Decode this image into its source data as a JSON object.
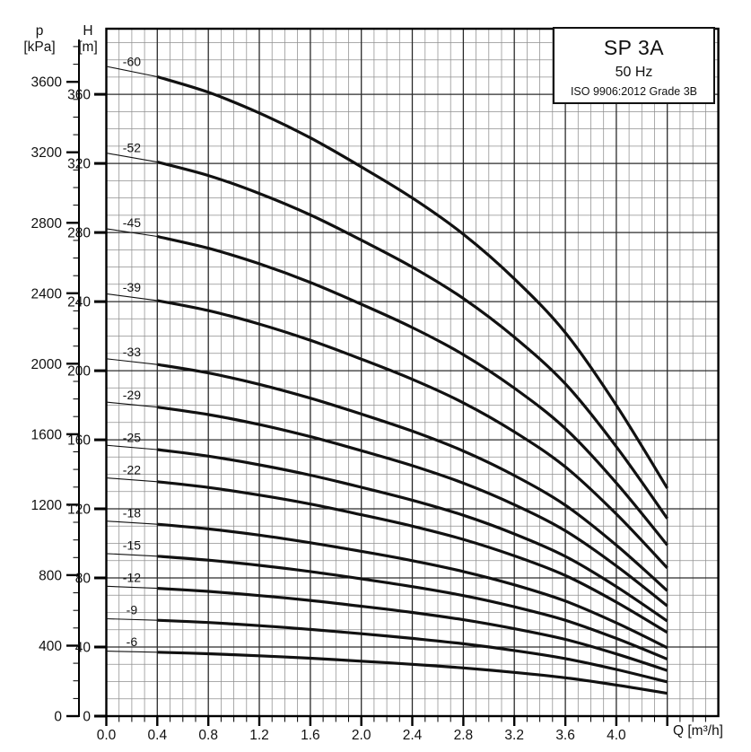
{
  "title_box": {
    "model": "SP 3A",
    "frequency": "50 Hz",
    "standard": "ISO 9906:2012 Grade 3B"
  },
  "axes": {
    "pressure": {
      "symbol": "p",
      "unit": "[kPa]",
      "tick_labels": [
        "0",
        "400",
        "800",
        "1200",
        "1600",
        "2000",
        "2400",
        "2800",
        "3200",
        "3600"
      ],
      "tick_values": [
        0,
        400,
        800,
        1200,
        1600,
        2000,
        2400,
        2800,
        3200,
        3600
      ],
      "minor_step": 100,
      "minor_max": 3800
    },
    "head": {
      "symbol": "H",
      "unit": "[m]",
      "tick_labels": [
        "0",
        "40",
        "80",
        "120",
        "160",
        "200",
        "240",
        "280",
        "320",
        "360"
      ],
      "tick_values": [
        0,
        40,
        80,
        120,
        160,
        200,
        240,
        280,
        320,
        360
      ]
    },
    "flow": {
      "label": "Q [m³/h]",
      "tick_labels": [
        "0.0",
        "0.4",
        "0.8",
        "1.2",
        "1.6",
        "2.0",
        "2.4",
        "2.8",
        "3.2",
        "3.6",
        "4.0"
      ],
      "tick_values": [
        0,
        0.4,
        0.8,
        1.2,
        1.6,
        2.0,
        2.4,
        2.8,
        3.2,
        3.6,
        4.0
      ]
    }
  },
  "chart_data": {
    "type": "line",
    "title": "SP 3A 50 Hz pump performance curves (head vs flow per stage count)",
    "xlabel": "Q [m³/h]",
    "ylabel": "H [m]",
    "y2label": "p [kPa]",
    "xlim": [
      0,
      4.8
    ],
    "ylim": [
      0,
      398
    ],
    "y2lim": [
      0,
      3890
    ],
    "grid": "minor 0.1 m3/h x 10 m, major 0.4 m3/h x 40 m",
    "legend_position": "labels above each curve at Q=0.2",
    "x": [
      0,
      0.4,
      0.8,
      1.2,
      1.6,
      2.0,
      2.4,
      2.8,
      3.2,
      3.6,
      4.0,
      4.4
    ],
    "thick_range_q": [
      0.4,
      4.4
    ],
    "series": [
      {
        "name": "-60",
        "values": [
          376.2,
          370.2,
          361.2,
          349.2,
          334.8,
          318.0,
          300.0,
          279.0,
          253.2,
          222.0,
          180.0,
          132.0
        ]
      },
      {
        "name": "-52",
        "values": [
          326.0,
          320.8,
          313.0,
          302.6,
          290.2,
          275.6,
          260.0,
          241.8,
          219.4,
          192.4,
          156.0,
          114.4
        ]
      },
      {
        "name": "-45",
        "values": [
          282.2,
          277.7,
          270.9,
          261.9,
          251.1,
          238.5,
          225.0,
          209.3,
          189.9,
          166.5,
          135.0,
          99.0
        ]
      },
      {
        "name": "-39",
        "values": [
          244.5,
          240.6,
          234.8,
          227.0,
          217.6,
          206.7,
          195.0,
          181.4,
          164.6,
          144.3,
          117.0,
          85.8
        ]
      },
      {
        "name": "-33",
        "values": [
          206.9,
          203.6,
          198.7,
          192.1,
          184.1,
          174.9,
          165.0,
          153.5,
          139.3,
          122.1,
          99.0,
          72.6
        ]
      },
      {
        "name": "-29",
        "values": [
          181.8,
          178.9,
          174.6,
          168.8,
          161.8,
          153.7,
          145.0,
          134.9,
          122.4,
          107.3,
          87.0,
          63.8
        ]
      },
      {
        "name": "-25",
        "values": [
          156.8,
          154.3,
          150.5,
          145.5,
          139.5,
          132.5,
          125.0,
          116.3,
          105.5,
          92.5,
          75.0,
          55.0
        ]
      },
      {
        "name": "-22",
        "values": [
          137.9,
          135.7,
          132.4,
          128.0,
          122.8,
          116.6,
          110.0,
          102.3,
          92.8,
          81.4,
          66.0,
          48.4
        ]
      },
      {
        "name": "-18",
        "values": [
          112.9,
          111.1,
          108.4,
          104.8,
          100.4,
          95.4,
          90.0,
          83.7,
          76.0,
          66.6,
          54.0,
          39.6
        ]
      },
      {
        "name": "-15",
        "values": [
          94.1,
          92.6,
          90.3,
          87.3,
          83.7,
          79.5,
          75.0,
          69.8,
          63.3,
          55.5,
          45.0,
          33.0
        ]
      },
      {
        "name": "-12",
        "values": [
          75.2,
          74.0,
          72.2,
          69.8,
          67.0,
          63.6,
          60.0,
          55.8,
          50.6,
          44.4,
          36.0,
          26.4
        ]
      },
      {
        "name": "-9",
        "values": [
          56.4,
          55.5,
          54.2,
          52.4,
          50.2,
          47.7,
          45.0,
          41.9,
          38.0,
          33.3,
          27.0,
          19.8
        ]
      },
      {
        "name": "-6",
        "values": [
          37.6,
          37.0,
          36.1,
          34.9,
          33.5,
          31.8,
          30.0,
          27.9,
          25.3,
          22.2,
          18.0,
          13.2
        ]
      }
    ]
  },
  "style": {
    "curve_color": "#111111",
    "grid_minor_color": "#8f8f8f",
    "grid_major_color": "#2b2b2b",
    "axis_color": "#000000",
    "background": "#ffffff"
  }
}
